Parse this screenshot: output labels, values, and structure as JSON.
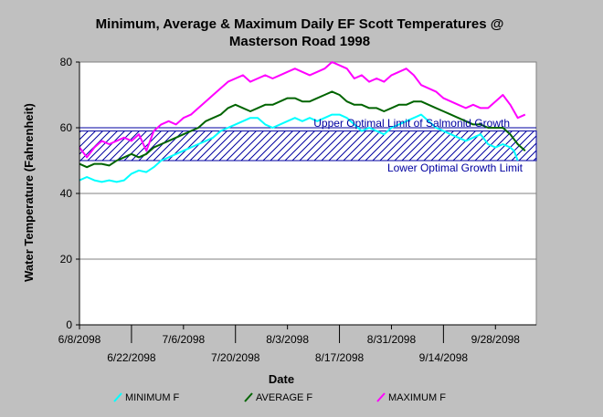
{
  "colors": {
    "background": "#c0c0c0",
    "plot_background": "#ffffff",
    "minimum": "#00ffff",
    "average": "#006400",
    "maximum": "#ff00ff",
    "band": "#0000a0",
    "gridline": "#808080",
    "axis": "#000000"
  },
  "chart_data": {
    "type": "line",
    "title": "Minimum, Average & Maximum Daily  EF Scott Temperatures @",
    "subtitle": "Masterson Road 1998",
    "xlabel": "Date",
    "ylabel": "Water Temperature (Fahrenheit)",
    "ylim": [
      0,
      80
    ],
    "yticks": [
      0,
      20,
      40,
      60,
      80
    ],
    "xlim": [
      0,
      123
    ],
    "grid": "horizontal gridlines at every y tick",
    "legend_placement": "bottom",
    "x_ticks": [
      {
        "day": 0,
        "label": "6/8/2098",
        "row": 1
      },
      {
        "day": 14,
        "label": "6/22/2098",
        "row": 2
      },
      {
        "day": 28,
        "label": "7/6/2098",
        "row": 1
      },
      {
        "day": 42,
        "label": "7/20/2098",
        "row": 2
      },
      {
        "day": 56,
        "label": "8/3/2098",
        "row": 1
      },
      {
        "day": 70,
        "label": "8/17/2098",
        "row": 2
      },
      {
        "day": 84,
        "label": "8/31/2098",
        "row": 1
      },
      {
        "day": 98,
        "label": "9/14/2098",
        "row": 2
      },
      {
        "day": 112,
        "label": "9/28/2098",
        "row": 1
      }
    ],
    "x_axis_note": "x values are day of record; day 0 = 6/8/2098",
    "band": {
      "y_low": 50,
      "y_high": 59,
      "pattern": "diagonal hatch"
    },
    "reference_lines": [
      {
        "y": 60,
        "label": "Upper Optimal Limit of Salmonid Growth"
      },
      {
        "y": 50,
        "label": "Lower Optimal Growth Limit"
      }
    ],
    "series": [
      {
        "name": "MINIMUM F",
        "color_key": "minimum",
        "points": [
          [
            0,
            44
          ],
          [
            2,
            45
          ],
          [
            4,
            44
          ],
          [
            6,
            43.5
          ],
          [
            8,
            44
          ],
          [
            10,
            43.5
          ],
          [
            12,
            44
          ],
          [
            14,
            46
          ],
          [
            16,
            47
          ],
          [
            18,
            46.5
          ],
          [
            20,
            48
          ],
          [
            22,
            50
          ],
          [
            24,
            51
          ],
          [
            26,
            52
          ],
          [
            28,
            53
          ],
          [
            30,
            54
          ],
          [
            32,
            55
          ],
          [
            34,
            56
          ],
          [
            36,
            57
          ],
          [
            38,
            59
          ],
          [
            40,
            60
          ],
          [
            42,
            61
          ],
          [
            44,
            62
          ],
          [
            46,
            63
          ],
          [
            48,
            63
          ],
          [
            50,
            61
          ],
          [
            52,
            60
          ],
          [
            54,
            61
          ],
          [
            56,
            62
          ],
          [
            58,
            63
          ],
          [
            60,
            62
          ],
          [
            62,
            63
          ],
          [
            64,
            62
          ],
          [
            66,
            63
          ],
          [
            68,
            64
          ],
          [
            70,
            64
          ],
          [
            72,
            63
          ],
          [
            74,
            61
          ],
          [
            76,
            59
          ],
          [
            78,
            60
          ],
          [
            80,
            59
          ],
          [
            82,
            58
          ],
          [
            84,
            60
          ],
          [
            86,
            61
          ],
          [
            88,
            62
          ],
          [
            90,
            63
          ],
          [
            92,
            64
          ],
          [
            94,
            62
          ],
          [
            96,
            60
          ],
          [
            98,
            59
          ],
          [
            100,
            58
          ],
          [
            102,
            57
          ],
          [
            104,
            56
          ],
          [
            106,
            57
          ],
          [
            108,
            58
          ],
          [
            110,
            55
          ],
          [
            112,
            54
          ],
          [
            114,
            55
          ],
          [
            116,
            54
          ],
          [
            117,
            53
          ],
          [
            118,
            50
          ]
        ]
      },
      {
        "name": "AVERAGE F",
        "color_key": "average",
        "points": [
          [
            0,
            49
          ],
          [
            2,
            48
          ],
          [
            4,
            49
          ],
          [
            6,
            49
          ],
          [
            8,
            48.5
          ],
          [
            10,
            50
          ],
          [
            12,
            51
          ],
          [
            14,
            52
          ],
          [
            16,
            51
          ],
          [
            18,
            52
          ],
          [
            20,
            54
          ],
          [
            22,
            55
          ],
          [
            24,
            56
          ],
          [
            26,
            57
          ],
          [
            28,
            58
          ],
          [
            30,
            59
          ],
          [
            32,
            60
          ],
          [
            34,
            62
          ],
          [
            36,
            63
          ],
          [
            38,
            64
          ],
          [
            40,
            66
          ],
          [
            42,
            67
          ],
          [
            44,
            66
          ],
          [
            46,
            65
          ],
          [
            48,
            66
          ],
          [
            50,
            67
          ],
          [
            52,
            67
          ],
          [
            54,
            68
          ],
          [
            56,
            69
          ],
          [
            58,
            69
          ],
          [
            60,
            68
          ],
          [
            62,
            68
          ],
          [
            64,
            69
          ],
          [
            66,
            70
          ],
          [
            68,
            71
          ],
          [
            70,
            70
          ],
          [
            72,
            68
          ],
          [
            74,
            67
          ],
          [
            76,
            67
          ],
          [
            78,
            66
          ],
          [
            80,
            66
          ],
          [
            82,
            65
          ],
          [
            84,
            66
          ],
          [
            86,
            67
          ],
          [
            88,
            67
          ],
          [
            90,
            68
          ],
          [
            92,
            68
          ],
          [
            94,
            67
          ],
          [
            96,
            66
          ],
          [
            98,
            65
          ],
          [
            100,
            64
          ],
          [
            102,
            63
          ],
          [
            104,
            62
          ],
          [
            106,
            61
          ],
          [
            108,
            61
          ],
          [
            110,
            60
          ],
          [
            112,
            60
          ],
          [
            114,
            60
          ],
          [
            116,
            58
          ],
          [
            118,
            55
          ],
          [
            120,
            53
          ]
        ]
      },
      {
        "name": "MAXIMUM F",
        "color_key": "maximum",
        "points": [
          [
            0,
            54
          ],
          [
            2,
            51
          ],
          [
            4,
            54
          ],
          [
            6,
            56
          ],
          [
            8,
            55
          ],
          [
            10,
            56
          ],
          [
            12,
            57
          ],
          [
            14,
            56
          ],
          [
            16,
            58
          ],
          [
            18,
            53
          ],
          [
            20,
            59
          ],
          [
            22,
            61
          ],
          [
            24,
            62
          ],
          [
            26,
            61
          ],
          [
            28,
            63
          ],
          [
            30,
            64
          ],
          [
            32,
            66
          ],
          [
            34,
            68
          ],
          [
            36,
            70
          ],
          [
            38,
            72
          ],
          [
            40,
            74
          ],
          [
            42,
            75
          ],
          [
            44,
            76
          ],
          [
            46,
            74
          ],
          [
            48,
            75
          ],
          [
            50,
            76
          ],
          [
            52,
            75
          ],
          [
            54,
            76
          ],
          [
            56,
            77
          ],
          [
            58,
            78
          ],
          [
            60,
            77
          ],
          [
            62,
            76
          ],
          [
            64,
            77
          ],
          [
            66,
            78
          ],
          [
            68,
            80
          ],
          [
            70,
            79
          ],
          [
            72,
            78
          ],
          [
            74,
            75
          ],
          [
            76,
            76
          ],
          [
            78,
            74
          ],
          [
            80,
            75
          ],
          [
            82,
            74
          ],
          [
            84,
            76
          ],
          [
            86,
            77
          ],
          [
            88,
            78
          ],
          [
            90,
            76
          ],
          [
            92,
            73
          ],
          [
            94,
            72
          ],
          [
            96,
            71
          ],
          [
            98,
            69
          ],
          [
            100,
            68
          ],
          [
            102,
            67
          ],
          [
            104,
            66
          ],
          [
            106,
            67
          ],
          [
            108,
            66
          ],
          [
            110,
            66
          ],
          [
            112,
            68
          ],
          [
            114,
            70
          ],
          [
            116,
            67
          ],
          [
            118,
            63
          ],
          [
            120,
            64
          ]
        ]
      }
    ]
  }
}
